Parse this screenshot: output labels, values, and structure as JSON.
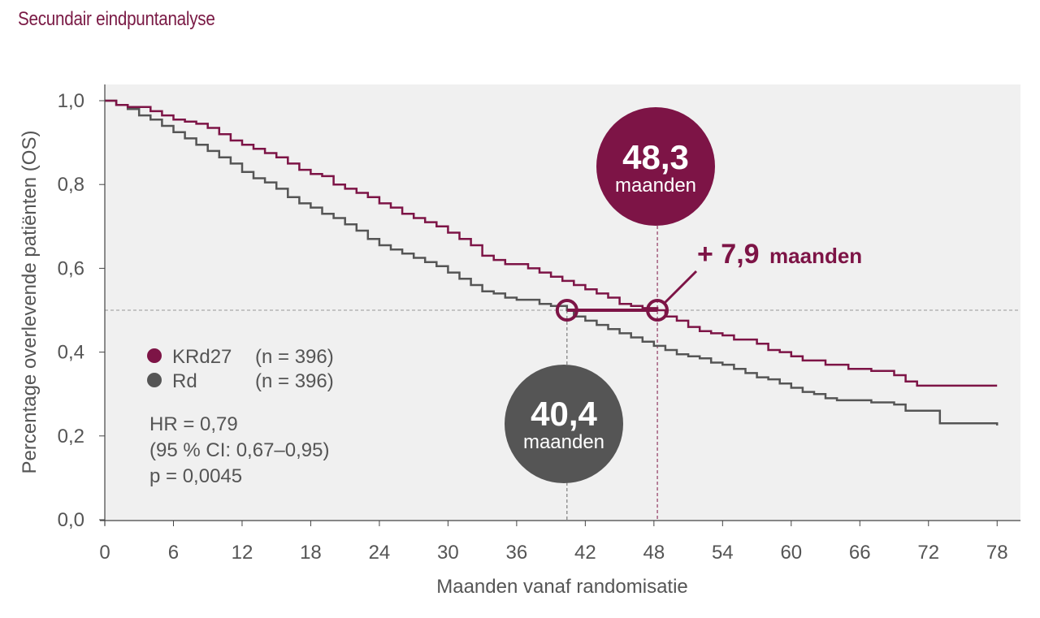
{
  "page": {
    "title": "Secundair eindpuntanalyse"
  },
  "colors": {
    "krd27": "#7d1446",
    "rd": "#555555",
    "plot_bg": "#f0f0f0",
    "guide": "#999999"
  },
  "chart_data": {
    "type": "line",
    "subtype": "kaplan-meier step curves",
    "xlabel": "Maanden vanaf randomisatie",
    "ylabel": "Percentage overlevende patiënten (OS)",
    "xlim": [
      0,
      78
    ],
    "ylim": [
      0,
      1
    ],
    "xticks": [
      0,
      6,
      12,
      18,
      24,
      30,
      36,
      42,
      48,
      54,
      60,
      66,
      72,
      78
    ],
    "xtick_labels": [
      "0",
      "6",
      "12",
      "18",
      "24",
      "30",
      "36",
      "42",
      "48",
      "54",
      "60",
      "66",
      "72",
      "78"
    ],
    "yticks": [
      0,
      0.2,
      0.4,
      0.6,
      0.8,
      1.0
    ],
    "ytick_labels": [
      "0,0",
      "0,2",
      "0,4",
      "0,6",
      "0,8",
      "1,0"
    ],
    "grid": false,
    "reference_line_y": 0.5,
    "series": [
      {
        "name": "KRd27",
        "n_label": "(n = 396)",
        "color": "#7d1446",
        "points": [
          [
            0,
            1.0
          ],
          [
            1,
            0.99
          ],
          [
            2,
            0.985
          ],
          [
            4,
            0.975
          ],
          [
            5,
            0.965
          ],
          [
            6,
            0.955
          ],
          [
            7,
            0.95
          ],
          [
            8,
            0.945
          ],
          [
            9,
            0.935
          ],
          [
            10,
            0.92
          ],
          [
            11,
            0.905
          ],
          [
            12,
            0.895
          ],
          [
            13,
            0.885
          ],
          [
            14,
            0.875
          ],
          [
            15,
            0.865
          ],
          [
            16,
            0.85
          ],
          [
            17,
            0.835
          ],
          [
            18,
            0.825
          ],
          [
            19,
            0.82
          ],
          [
            20,
            0.8
          ],
          [
            21,
            0.79
          ],
          [
            22,
            0.78
          ],
          [
            23,
            0.77
          ],
          [
            24,
            0.755
          ],
          [
            25,
            0.745
          ],
          [
            26,
            0.73
          ],
          [
            27,
            0.72
          ],
          [
            28,
            0.71
          ],
          [
            29,
            0.7
          ],
          [
            30,
            0.685
          ],
          [
            31,
            0.67
          ],
          [
            32,
            0.655
          ],
          [
            33,
            0.63
          ],
          [
            34,
            0.62
          ],
          [
            35,
            0.61
          ],
          [
            37,
            0.6
          ],
          [
            38,
            0.59
          ],
          [
            39,
            0.58
          ],
          [
            40,
            0.57
          ],
          [
            41,
            0.56
          ],
          [
            42,
            0.55
          ],
          [
            43,
            0.54
          ],
          [
            44,
            0.53
          ],
          [
            45,
            0.515
          ],
          [
            46,
            0.51
          ],
          [
            47,
            0.505
          ],
          [
            48.3,
            0.5
          ],
          [
            49,
            0.485
          ],
          [
            50,
            0.475
          ],
          [
            51,
            0.46
          ],
          [
            52,
            0.45
          ],
          [
            53,
            0.445
          ],
          [
            54,
            0.44
          ],
          [
            55,
            0.43
          ],
          [
            57,
            0.42
          ],
          [
            58,
            0.405
          ],
          [
            59,
            0.4
          ],
          [
            60,
            0.39
          ],
          [
            61,
            0.38
          ],
          [
            63,
            0.37
          ],
          [
            65,
            0.36
          ],
          [
            67,
            0.355
          ],
          [
            69,
            0.345
          ],
          [
            70,
            0.33
          ],
          [
            71,
            0.32
          ],
          [
            78,
            0.32
          ]
        ]
      },
      {
        "name": "Rd",
        "n_label": "(n = 396)",
        "color": "#555555",
        "points": [
          [
            0,
            1.0
          ],
          [
            1,
            0.99
          ],
          [
            2,
            0.98
          ],
          [
            3,
            0.965
          ],
          [
            4,
            0.955
          ],
          [
            5,
            0.94
          ],
          [
            6,
            0.925
          ],
          [
            7,
            0.91
          ],
          [
            8,
            0.895
          ],
          [
            9,
            0.88
          ],
          [
            10,
            0.865
          ],
          [
            11,
            0.85
          ],
          [
            12,
            0.83
          ],
          [
            13,
            0.815
          ],
          [
            14,
            0.805
          ],
          [
            15,
            0.79
          ],
          [
            16,
            0.77
          ],
          [
            17,
            0.755
          ],
          [
            18,
            0.745
          ],
          [
            19,
            0.73
          ],
          [
            20,
            0.72
          ],
          [
            21,
            0.705
          ],
          [
            22,
            0.69
          ],
          [
            23,
            0.67
          ],
          [
            24,
            0.655
          ],
          [
            25,
            0.645
          ],
          [
            26,
            0.635
          ],
          [
            27,
            0.625
          ],
          [
            28,
            0.615
          ],
          [
            29,
            0.605
          ],
          [
            30,
            0.59
          ],
          [
            31,
            0.575
          ],
          [
            32,
            0.56
          ],
          [
            33,
            0.545
          ],
          [
            34,
            0.54
          ],
          [
            35,
            0.53
          ],
          [
            36,
            0.525
          ],
          [
            38,
            0.515
          ],
          [
            39,
            0.51
          ],
          [
            40.4,
            0.5
          ],
          [
            41,
            0.485
          ],
          [
            42,
            0.475
          ],
          [
            43,
            0.465
          ],
          [
            44,
            0.455
          ],
          [
            45,
            0.445
          ],
          [
            46,
            0.435
          ],
          [
            47,
            0.425
          ],
          [
            48,
            0.415
          ],
          [
            49,
            0.405
          ],
          [
            50,
            0.395
          ],
          [
            51,
            0.39
          ],
          [
            52,
            0.385
          ],
          [
            53,
            0.375
          ],
          [
            54,
            0.37
          ],
          [
            55,
            0.36
          ],
          [
            56,
            0.35
          ],
          [
            57,
            0.34
          ],
          [
            58,
            0.335
          ],
          [
            59,
            0.325
          ],
          [
            60,
            0.315
          ],
          [
            61,
            0.305
          ],
          [
            62,
            0.3
          ],
          [
            63,
            0.29
          ],
          [
            64,
            0.285
          ],
          [
            67,
            0.28
          ],
          [
            69,
            0.275
          ],
          [
            70,
            0.26
          ],
          [
            73,
            0.23
          ],
          [
            78,
            0.225
          ]
        ]
      }
    ],
    "medians": [
      {
        "series": "KRd27",
        "x": 48.3,
        "value_label": "48,3",
        "unit_label": "maanden"
      },
      {
        "series": "Rd",
        "x": 40.4,
        "value_label": "40,4",
        "unit_label": "maanden"
      }
    ],
    "difference": {
      "value_label": "+ 7,9",
      "unit_label": "maanden"
    },
    "stats": [
      "HR = 0,79",
      "(95 % CI: 0,67–0,95)",
      "p = 0,0045"
    ]
  }
}
